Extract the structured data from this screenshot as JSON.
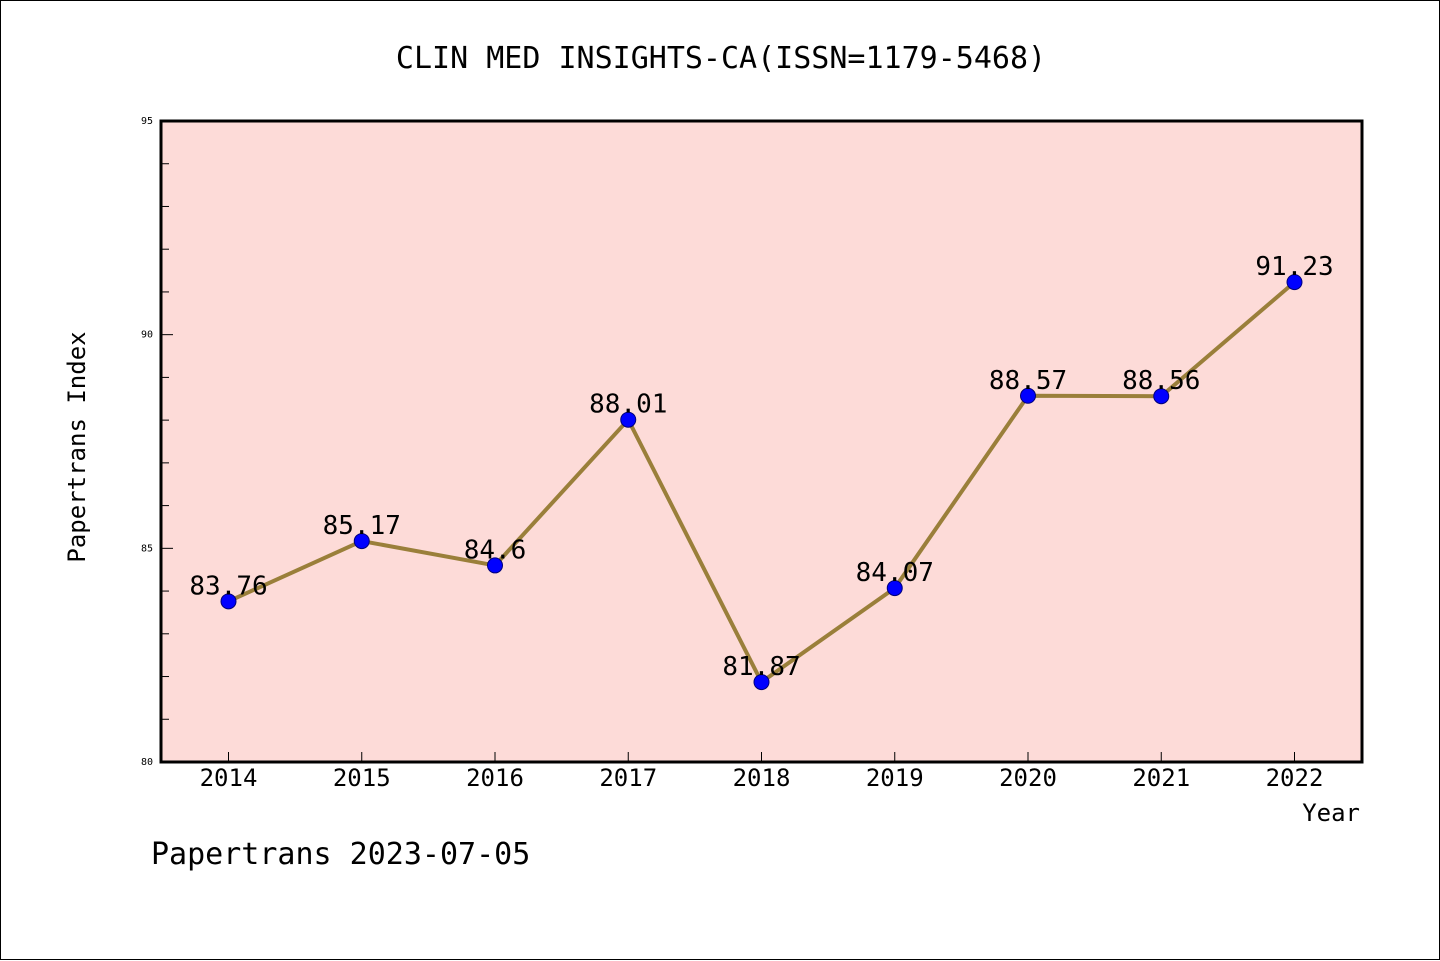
{
  "chart_data": {
    "type": "line",
    "title": "CLIN MED INSIGHTS-CA(ISSN=1179-5468)",
    "xlabel": "Year",
    "ylabel": "Papertrans Index",
    "categories": [
      "2014",
      "2015",
      "2016",
      "2017",
      "2018",
      "2019",
      "2020",
      "2021",
      "2022"
    ],
    "series": [
      {
        "values": [
          83.76,
          85.17,
          84.6,
          88.01,
          81.87,
          84.07,
          88.57,
          88.56,
          91.23
        ]
      }
    ],
    "data_labels": [
      "83.76",
      "85.17",
      "84.6",
      "88.01",
      "81.87",
      "84.07",
      "88.57",
      "88.56",
      "91.23"
    ],
    "ylim": [
      80,
      95
    ],
    "yticks": [
      "80",
      "85",
      "90",
      "95"
    ],
    "grid": false,
    "legend": "none",
    "colors": {
      "plot_background": "#fddbd8",
      "line": "#9a7f3a",
      "marker": "#0000ff"
    }
  },
  "footer": {
    "text": "Papertrans 2023-07-05"
  }
}
